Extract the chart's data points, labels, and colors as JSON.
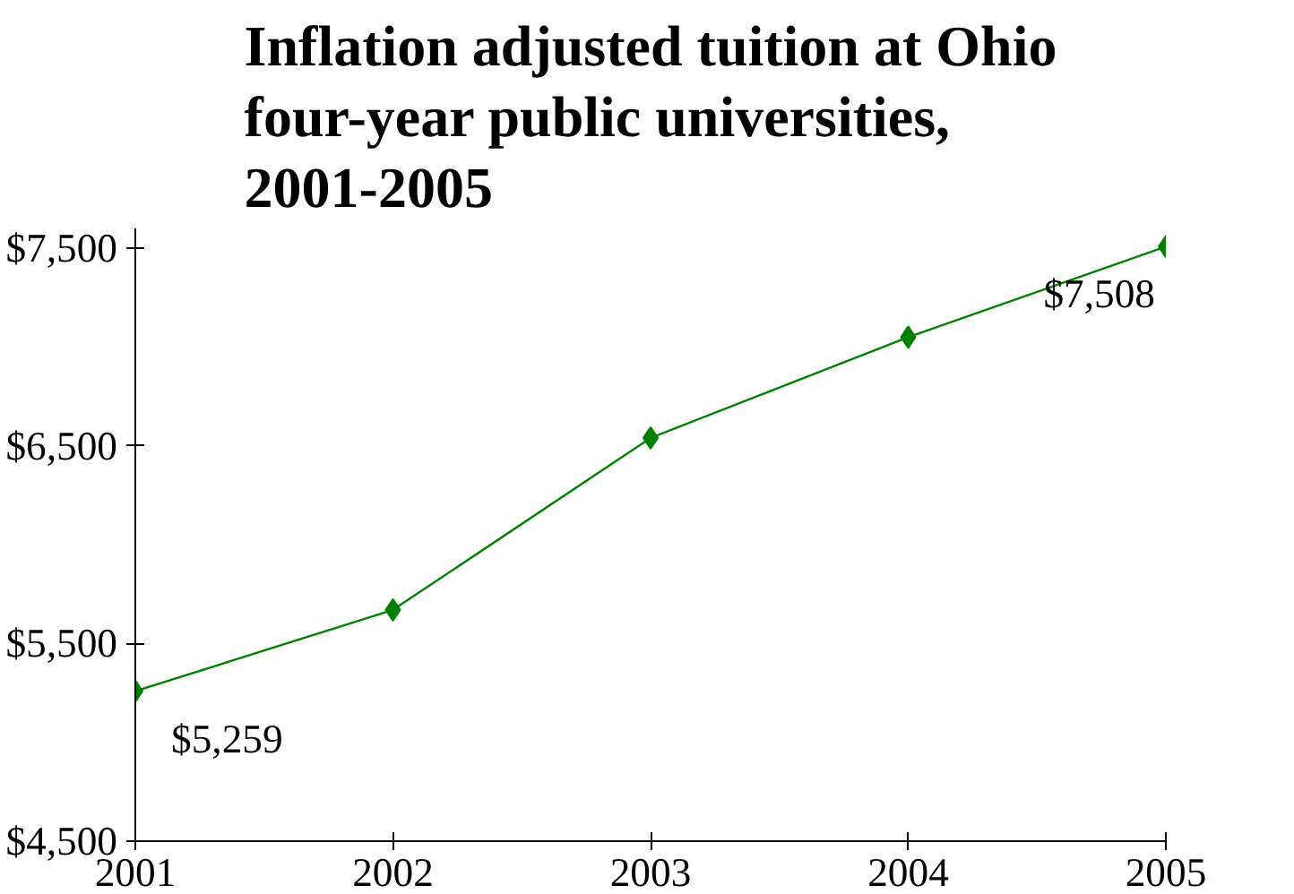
{
  "chart_data": {
    "type": "line",
    "title": "Inflation adjusted tuition at Ohio\nfour-year public universities,\n2001-2005",
    "x": [
      2001,
      2002,
      2003,
      2004,
      2005
    ],
    "series": [
      {
        "color": "#008000",
        "values": [
          5259,
          5670,
          6540,
          7050,
          7508
        ],
        "value_labels": [
          "$5,259",
          null,
          null,
          null,
          "$7,508"
        ]
      }
    ],
    "xlim": [
      2001,
      2005
    ],
    "xticks": [
      2001,
      2002,
      2003,
      2004,
      2005
    ],
    "ylim": [
      4500,
      7600
    ],
    "yticks": [
      {
        "value": 4500,
        "label": "$4,500"
      },
      {
        "value": 5500,
        "label": "$5,500"
      },
      {
        "value": 6500,
        "label": "$6,500"
      },
      {
        "value": 7500,
        "label": "$7,500"
      }
    ],
    "grid": false,
    "marker": "diamond",
    "line_style": "solid"
  }
}
